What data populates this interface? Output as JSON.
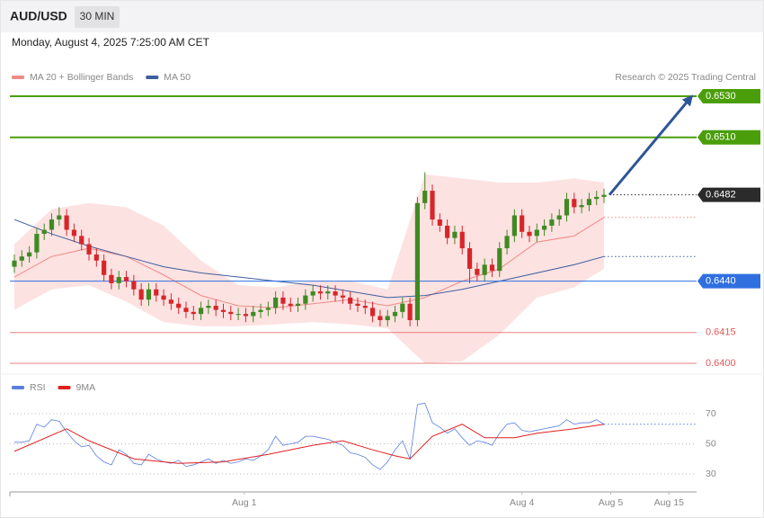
{
  "chart_data": [
    {
      "type": "candlestick",
      "title": "AUD/USD",
      "interval": "30 MIN",
      "subtitle": "Monday, August 4, 2025 7:25:00 AM CET",
      "credit": "Research © 2025 Trading Central",
      "up_color": "#3f8a22",
      "down_color": "#d7262b",
      "xlim": [
        -0.6,
        91.4
      ],
      "ylim": [
        0.6395,
        0.6535
      ],
      "open": [
        0.6447,
        0.645,
        0.6452,
        0.6454,
        0.6463,
        0.6465,
        0.647,
        0.6472,
        0.6465,
        0.6462,
        0.6458,
        0.6453,
        0.645,
        0.6443,
        0.6439,
        0.6442,
        0.644,
        0.6436,
        0.6431,
        0.6436,
        0.6433,
        0.6431,
        0.6429,
        0.6427,
        0.6425,
        0.6424,
        0.6427,
        0.6428,
        0.6426,
        0.6425,
        0.6424,
        0.6424,
        0.6423,
        0.6425,
        0.6426,
        0.6427,
        0.6432,
        0.6429,
        0.6428,
        0.6429,
        0.6433,
        0.6435,
        0.6434,
        0.6435,
        0.6433,
        0.6432,
        0.6429,
        0.6428,
        0.6427,
        0.6423,
        0.6421,
        0.6423,
        0.6425,
        0.6429,
        0.6421,
        0.6478,
        0.6484,
        0.647,
        0.6467,
        0.6461,
        0.6464,
        0.6456,
        0.6446,
        0.6443,
        0.6448,
        0.6445,
        0.6456,
        0.6462,
        0.6472,
        0.6464,
        0.6462,
        0.6465,
        0.6467,
        0.647,
        0.6472,
        0.648,
        0.6476,
        0.6477,
        0.648,
        0.6481
      ],
      "high": [
        0.6453,
        0.6455,
        0.6457,
        0.6466,
        0.6468,
        0.6473,
        0.6476,
        0.6475,
        0.6468,
        0.6465,
        0.6461,
        0.6456,
        0.6453,
        0.6446,
        0.6445,
        0.6445,
        0.6443,
        0.6439,
        0.6439,
        0.6439,
        0.6436,
        0.6434,
        0.6432,
        0.643,
        0.6428,
        0.643,
        0.6431,
        0.6431,
        0.6429,
        0.6428,
        0.6427,
        0.6427,
        0.6428,
        0.6429,
        0.643,
        0.6435,
        0.6435,
        0.6432,
        0.6432,
        0.6436,
        0.6438,
        0.6438,
        0.6438,
        0.6438,
        0.6436,
        0.6435,
        0.6432,
        0.6431,
        0.643,
        0.6426,
        0.6426,
        0.6428,
        0.6432,
        0.6432,
        0.6481,
        0.6493,
        0.6487,
        0.6473,
        0.647,
        0.6467,
        0.6467,
        0.6459,
        0.6449,
        0.6451,
        0.6451,
        0.6459,
        0.6465,
        0.6475,
        0.6475,
        0.6467,
        0.6468,
        0.647,
        0.6473,
        0.6475,
        0.6483,
        0.6483,
        0.648,
        0.6483,
        0.6484,
        0.6485
      ],
      "low": [
        0.6444,
        0.6447,
        0.6449,
        0.6451,
        0.646,
        0.6462,
        0.6467,
        0.6462,
        0.6459,
        0.6455,
        0.645,
        0.6447,
        0.644,
        0.6436,
        0.6436,
        0.6437,
        0.6433,
        0.6428,
        0.6428,
        0.643,
        0.6428,
        0.6426,
        0.6424,
        0.6422,
        0.6421,
        0.6421,
        0.6424,
        0.6423,
        0.6422,
        0.6421,
        0.6421,
        0.642,
        0.642,
        0.6422,
        0.6423,
        0.6424,
        0.6426,
        0.6425,
        0.6425,
        0.6426,
        0.643,
        0.6431,
        0.6431,
        0.643,
        0.6429,
        0.6426,
        0.6425,
        0.6424,
        0.642,
        0.6418,
        0.6418,
        0.642,
        0.6422,
        0.6418,
        0.6418,
        0.6475,
        0.6467,
        0.6464,
        0.6458,
        0.6458,
        0.6453,
        0.6439,
        0.644,
        0.644,
        0.6442,
        0.6442,
        0.6453,
        0.6459,
        0.6461,
        0.6459,
        0.6459,
        0.6462,
        0.6464,
        0.6467,
        0.6469,
        0.6473,
        0.6473,
        0.6474,
        0.6477,
        0.6478
      ],
      "close": [
        0.645,
        0.6452,
        0.6454,
        0.6463,
        0.6465,
        0.647,
        0.6472,
        0.6465,
        0.6462,
        0.6458,
        0.6453,
        0.645,
        0.6443,
        0.6439,
        0.6442,
        0.644,
        0.6436,
        0.6431,
        0.6436,
        0.6433,
        0.6431,
        0.6429,
        0.6427,
        0.6425,
        0.6424,
        0.6427,
        0.6428,
        0.6426,
        0.6425,
        0.6424,
        0.6424,
        0.6423,
        0.6425,
        0.6426,
        0.6427,
        0.6432,
        0.6429,
        0.6428,
        0.6429,
        0.6433,
        0.6435,
        0.6434,
        0.6435,
        0.6433,
        0.6432,
        0.6429,
        0.6428,
        0.6427,
        0.6423,
        0.6421,
        0.6423,
        0.6425,
        0.6429,
        0.6421,
        0.6478,
        0.6484,
        0.647,
        0.6467,
        0.6461,
        0.6464,
        0.6456,
        0.6446,
        0.6443,
        0.6448,
        0.6445,
        0.6456,
        0.6462,
        0.6472,
        0.6464,
        0.6462,
        0.6465,
        0.6467,
        0.647,
        0.6472,
        0.648,
        0.6476,
        0.6477,
        0.648,
        0.6481,
        0.6482
      ],
      "overlays": [
        {
          "name": "MA 20 + Bollinger Bands",
          "color": "#f08a86",
          "band_color": "#fde2e2",
          "x": [
            0,
            5,
            10,
            15,
            20,
            25,
            30,
            35,
            40,
            45,
            50,
            55,
            60,
            65,
            70,
            75,
            79
          ],
          "values": [
            0.6442,
            0.6452,
            0.6456,
            0.6452,
            0.6443,
            0.6433,
            0.6428,
            0.6427,
            0.6429,
            0.6431,
            0.6428,
            0.6432,
            0.644,
            0.6446,
            0.6459,
            0.6462,
            0.6471
          ],
          "upper": [
            0.6458,
            0.6475,
            0.6478,
            0.6476,
            0.6467,
            0.645,
            0.6438,
            0.6437,
            0.644,
            0.644,
            0.6436,
            0.6492,
            0.649,
            0.6488,
            0.6488,
            0.649,
            0.6488
          ],
          "lower": [
            0.6426,
            0.6436,
            0.6438,
            0.643,
            0.642,
            0.6418,
            0.6418,
            0.6419,
            0.642,
            0.6419,
            0.6417,
            0.64,
            0.6401,
            0.6414,
            0.6432,
            0.6437,
            0.6446
          ]
        },
        {
          "name": "MA 50",
          "color": "#3d5f9e",
          "x": [
            0,
            5,
            10,
            15,
            20,
            25,
            30,
            35,
            40,
            45,
            50,
            55,
            60,
            65,
            70,
            75,
            79
          ],
          "values": [
            0.647,
            0.6463,
            0.6457,
            0.6452,
            0.6447,
            0.6444,
            0.6442,
            0.644,
            0.6438,
            0.6435,
            0.6432,
            0.6433,
            0.6436,
            0.644,
            0.6444,
            0.6448,
            0.6452
          ]
        }
      ],
      "levels": [
        {
          "value": 0.653,
          "label": "0.6530",
          "color": "#4a9e0a",
          "line": "solid",
          "box": true
        },
        {
          "value": 0.651,
          "label": "0.6510",
          "color": "#4a9e0a",
          "line": "solid",
          "box": true
        },
        {
          "value": 0.6482,
          "label": "0.6482",
          "color": "#2b2b2b",
          "line": "dotted",
          "box": true
        },
        {
          "value": 0.644,
          "label": "0.6440",
          "color": "#2f6fe0",
          "line": "solid",
          "box": true
        },
        {
          "value": 0.6415,
          "label": "0.6415",
          "color": "#e05a5a",
          "line": "solid",
          "box": false
        },
        {
          "value": 0.64,
          "label": "0.6400",
          "color": "#e05a5a",
          "line": "solid",
          "box": false
        }
      ],
      "arrow_color": "#2e5597"
    },
    {
      "type": "line",
      "xlim": [
        -0.6,
        91.4
      ],
      "ylim": [
        22,
        94
      ],
      "yticks": [
        30,
        50,
        70
      ],
      "grid": true,
      "xticks": [
        {
          "value": 30.8,
          "label": "Aug 1"
        },
        {
          "value": 68,
          "label": "Aug 4"
        },
        {
          "value": 79.9,
          "label": "Aug 5"
        },
        {
          "value": 87.7,
          "label": "Aug 15"
        }
      ],
      "series": [
        {
          "name": "RSI",
          "color": "#5b7fe0",
          "values": [
            51,
            51,
            52,
            63,
            61,
            66,
            65,
            58,
            52,
            48,
            49,
            42,
            38,
            36,
            46,
            43,
            37,
            36,
            43,
            40,
            38,
            37,
            39,
            35,
            36,
            38,
            40,
            37,
            39,
            37,
            38,
            40,
            39,
            42,
            46,
            55,
            49,
            50,
            51,
            55,
            55,
            54,
            53,
            51,
            49,
            44,
            43,
            41,
            36,
            33,
            38,
            46,
            52,
            40,
            76,
            77,
            64,
            61,
            57,
            60,
            54,
            49,
            52,
            51,
            49,
            57,
            63,
            64,
            59,
            58,
            59,
            60,
            61,
            62,
            66,
            63,
            64,
            64,
            66,
            63
          ]
        },
        {
          "name": "9MA",
          "color": "#e02020",
          "x": [
            0,
            7,
            10,
            16,
            22,
            28,
            34,
            40,
            44,
            48,
            51,
            53,
            56,
            60,
            63,
            67,
            70,
            75,
            79
          ],
          "values": [
            45,
            60,
            52,
            40,
            37,
            38,
            43,
            49,
            52,
            46,
            42,
            40,
            55,
            63,
            54,
            54,
            57,
            60,
            63
          ]
        }
      ]
    }
  ]
}
